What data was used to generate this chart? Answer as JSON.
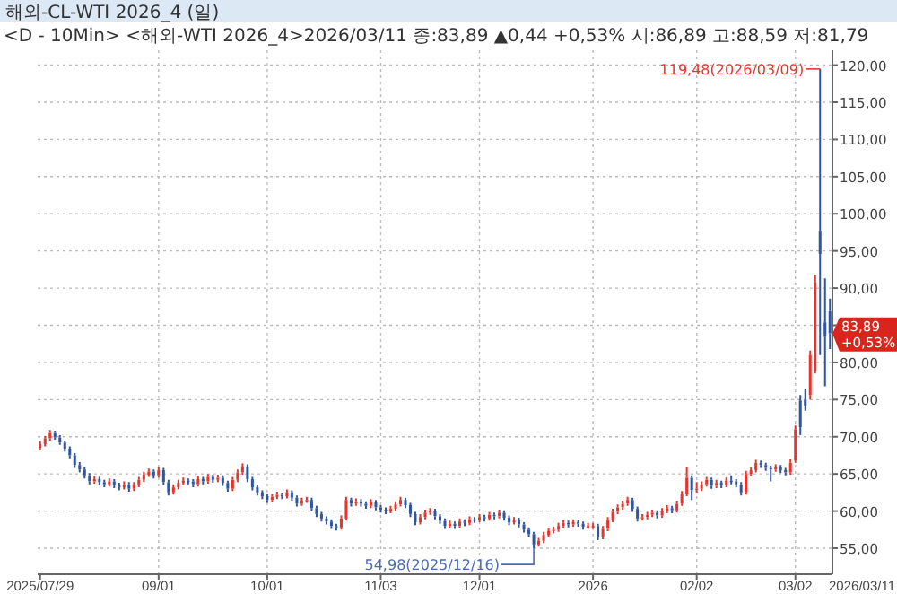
{
  "chart_data": {
    "type": "candlestick",
    "title": "해외-CL-WTI 2026_4 (일)",
    "subtitle": "<D - 10Min> <해외-WTI 2026_4>2026/03/11 종:83,89 ▲0,44 +0,53% 시:86,89 고:88,59 저:81,79",
    "categories": [
      "2025/07/29",
      null,
      null,
      null,
      null,
      null,
      null,
      null,
      null,
      null,
      null,
      null,
      null,
      null,
      null,
      null,
      null,
      null,
      null,
      null,
      null,
      null,
      null,
      null,
      "09/01",
      null,
      null,
      null,
      null,
      null,
      null,
      null,
      null,
      null,
      null,
      null,
      null,
      null,
      null,
      null,
      null,
      null,
      null,
      null,
      null,
      null,
      "10/01",
      null,
      null,
      null,
      null,
      null,
      null,
      null,
      null,
      null,
      null,
      null,
      null,
      null,
      null,
      null,
      null,
      null,
      null,
      null,
      null,
      null,
      null,
      "11/03",
      null,
      null,
      null,
      null,
      null,
      null,
      null,
      null,
      null,
      null,
      null,
      null,
      null,
      null,
      null,
      null,
      null,
      null,
      null,
      "12/01",
      null,
      null,
      null,
      null,
      null,
      null,
      null,
      null,
      null,
      null,
      null,
      null,
      null,
      null,
      null,
      null,
      null,
      null,
      null,
      null,
      null,
      null,
      "2026",
      null,
      null,
      null,
      null,
      null,
      null,
      null,
      null,
      null,
      null,
      null,
      null,
      null,
      null,
      null,
      null,
      null,
      null,
      null,
      null,
      "02/02",
      null,
      null,
      null,
      null,
      null,
      null,
      null,
      null,
      null,
      null,
      null,
      null,
      null,
      null,
      null,
      null,
      null,
      null,
      null,
      "03/02",
      null,
      null,
      null,
      null,
      null,
      null,
      null
    ],
    "ohlc": [
      [
        68.5,
        69.4,
        68.2,
        69.0
      ],
      [
        69.0,
        70.1,
        68.7,
        69.8
      ],
      [
        69.8,
        70.9,
        69.5,
        70.5
      ],
      [
        70.5,
        70.8,
        69.6,
        69.9
      ],
      [
        69.9,
        70.2,
        68.9,
        69.2
      ],
      [
        69.2,
        69.5,
        68.0,
        68.4
      ],
      [
        68.4,
        68.7,
        67.1,
        67.5
      ],
      [
        67.5,
        67.8,
        65.8,
        66.2
      ],
      [
        66.2,
        66.6,
        65.2,
        65.6
      ],
      [
        65.6,
        65.9,
        64.4,
        64.8
      ],
      [
        64.8,
        65.1,
        63.6,
        64.0
      ],
      [
        64.0,
        64.7,
        63.7,
        64.3
      ],
      [
        64.3,
        64.6,
        63.5,
        63.9
      ],
      [
        63.9,
        64.2,
        63.2,
        63.6
      ],
      [
        63.6,
        64.4,
        63.3,
        64.0
      ],
      [
        64.0,
        64.3,
        63.1,
        63.5
      ],
      [
        63.5,
        63.8,
        62.8,
        63.2
      ],
      [
        63.2,
        64.0,
        62.9,
        63.6
      ],
      [
        63.6,
        63.9,
        62.6,
        63.0
      ],
      [
        63.0,
        63.9,
        62.7,
        63.5
      ],
      [
        63.5,
        64.6,
        63.2,
        64.2
      ],
      [
        64.2,
        65.3,
        63.9,
        64.9
      ],
      [
        64.9,
        65.7,
        64.6,
        65.3
      ],
      [
        65.3,
        65.6,
        64.4,
        64.8
      ],
      [
        64.8,
        65.9,
        64.5,
        65.5
      ],
      [
        65.5,
        65.8,
        63.5,
        63.9
      ],
      [
        63.9,
        64.2,
        62.1,
        62.5
      ],
      [
        62.5,
        63.6,
        62.2,
        63.2
      ],
      [
        63.2,
        64.2,
        62.9,
        63.8
      ],
      [
        63.8,
        64.5,
        63.5,
        64.1
      ],
      [
        64.1,
        64.4,
        63.6,
        64.0
      ],
      [
        64.0,
        64.3,
        63.2,
        63.6
      ],
      [
        63.6,
        64.7,
        63.3,
        64.3
      ],
      [
        64.3,
        64.6,
        63.6,
        64.0
      ],
      [
        64.0,
        65.0,
        63.7,
        64.6
      ],
      [
        64.6,
        64.9,
        63.8,
        64.2
      ],
      [
        64.2,
        64.9,
        63.9,
        64.5
      ],
      [
        64.5,
        64.8,
        63.4,
        63.8
      ],
      [
        63.8,
        64.1,
        62.6,
        63.0
      ],
      [
        63.0,
        64.6,
        62.7,
        64.2
      ],
      [
        64.2,
        65.6,
        63.9,
        65.2
      ],
      [
        65.2,
        66.4,
        64.9,
        66.0
      ],
      [
        66.0,
        66.3,
        63.9,
        64.3
      ],
      [
        64.3,
        64.6,
        62.8,
        63.2
      ],
      [
        63.2,
        63.5,
        62.1,
        62.5
      ],
      [
        62.5,
        62.8,
        61.6,
        62.0
      ],
      [
        62.0,
        62.3,
        61.1,
        61.5
      ],
      [
        61.5,
        62.3,
        61.2,
        61.9
      ],
      [
        61.9,
        62.6,
        61.6,
        62.2
      ],
      [
        62.2,
        62.5,
        61.6,
        62.0
      ],
      [
        62.0,
        62.9,
        61.7,
        62.5
      ],
      [
        62.5,
        62.8,
        61.4,
        61.8
      ],
      [
        61.8,
        62.1,
        60.6,
        61.0
      ],
      [
        61.0,
        61.8,
        60.7,
        61.4
      ],
      [
        61.4,
        61.9,
        61.1,
        61.5
      ],
      [
        61.5,
        61.8,
        60.0,
        60.4
      ],
      [
        60.4,
        60.7,
        59.2,
        59.6
      ],
      [
        59.6,
        59.9,
        58.6,
        59.0
      ],
      [
        59.0,
        59.3,
        58.2,
        58.6
      ],
      [
        58.6,
        58.9,
        57.6,
        58.0
      ],
      [
        58.0,
        58.3,
        57.4,
        57.8
      ],
      [
        57.8,
        59.4,
        57.5,
        59.0
      ],
      [
        59.0,
        61.9,
        58.7,
        61.5
      ],
      [
        61.5,
        61.8,
        60.6,
        61.0
      ],
      [
        61.0,
        61.7,
        60.7,
        61.3
      ],
      [
        61.3,
        61.6,
        60.6,
        61.0
      ],
      [
        61.0,
        61.3,
        60.3,
        60.7
      ],
      [
        60.7,
        61.6,
        60.4,
        61.2
      ],
      [
        61.2,
        61.5,
        60.1,
        60.5
      ],
      [
        60.5,
        60.8,
        59.8,
        60.2
      ],
      [
        60.2,
        60.5,
        59.6,
        60.0
      ],
      [
        60.0,
        60.7,
        59.7,
        60.3
      ],
      [
        60.3,
        61.3,
        60.0,
        60.9
      ],
      [
        60.9,
        61.9,
        60.6,
        61.5
      ],
      [
        61.5,
        61.8,
        60.4,
        60.8
      ],
      [
        60.8,
        61.1,
        59.2,
        59.6
      ],
      [
        59.6,
        59.9,
        58.1,
        58.5
      ],
      [
        58.5,
        59.6,
        58.2,
        59.2
      ],
      [
        59.2,
        60.2,
        58.9,
        59.8
      ],
      [
        59.8,
        60.4,
        59.5,
        60.0
      ],
      [
        60.0,
        60.3,
        58.9,
        59.3
      ],
      [
        59.3,
        59.6,
        58.3,
        58.7
      ],
      [
        58.7,
        59.0,
        57.6,
        58.0
      ],
      [
        58.0,
        58.7,
        57.7,
        58.3
      ],
      [
        58.3,
        58.6,
        57.6,
        58.0
      ],
      [
        58.0,
        59.0,
        57.7,
        58.6
      ],
      [
        58.6,
        58.9,
        58.0,
        58.4
      ],
      [
        58.4,
        59.3,
        58.1,
        58.9
      ],
      [
        58.9,
        59.2,
        58.4,
        58.8
      ],
      [
        58.8,
        59.6,
        58.5,
        59.2
      ],
      [
        59.2,
        59.5,
        58.6,
        59.0
      ],
      [
        59.0,
        59.9,
        58.7,
        59.5
      ],
      [
        59.5,
        59.8,
        58.9,
        59.3
      ],
      [
        59.3,
        60.2,
        59.0,
        59.8
      ],
      [
        59.8,
        60.1,
        58.7,
        59.1
      ],
      [
        59.1,
        59.4,
        58.1,
        58.5
      ],
      [
        58.5,
        59.2,
        58.2,
        58.8
      ],
      [
        58.8,
        59.1,
        57.8,
        58.2
      ],
      [
        58.2,
        58.5,
        57.1,
        57.5
      ],
      [
        57.5,
        57.8,
        56.5,
        56.9
      ],
      [
        56.9,
        57.2,
        54.98,
        55.5
      ],
      [
        55.5,
        56.4,
        55.2,
        56.0
      ],
      [
        56.0,
        57.2,
        55.7,
        56.8
      ],
      [
        56.8,
        57.7,
        56.5,
        57.3
      ],
      [
        57.3,
        57.9,
        57.0,
        57.5
      ],
      [
        57.5,
        58.4,
        57.2,
        58.0
      ],
      [
        58.0,
        58.8,
        57.7,
        58.4
      ],
      [
        58.4,
        58.7,
        57.8,
        58.2
      ],
      [
        58.2,
        58.9,
        57.9,
        58.5
      ],
      [
        58.5,
        58.8,
        57.9,
        58.3
      ],
      [
        58.3,
        58.6,
        57.5,
        57.9
      ],
      [
        57.9,
        58.4,
        57.6,
        58.0
      ],
      [
        58.0,
        58.4,
        57.6,
        58.0
      ],
      [
        58.0,
        58.3,
        56.1,
        56.5
      ],
      [
        56.5,
        58.0,
        56.2,
        57.6
      ],
      [
        57.6,
        59.2,
        57.3,
        58.8
      ],
      [
        58.8,
        60.3,
        58.5,
        59.9
      ],
      [
        59.9,
        60.9,
        59.6,
        60.5
      ],
      [
        60.5,
        61.4,
        60.2,
        61.0
      ],
      [
        61.0,
        61.9,
        60.7,
        61.5
      ],
      [
        61.5,
        61.8,
        59.9,
        60.3
      ],
      [
        60.3,
        60.6,
        58.6,
        59.0
      ],
      [
        59.0,
        59.6,
        58.7,
        59.2
      ],
      [
        59.2,
        59.9,
        58.9,
        59.5
      ],
      [
        59.5,
        60.2,
        59.2,
        59.8
      ],
      [
        59.8,
        60.1,
        59.0,
        59.4
      ],
      [
        59.4,
        60.4,
        59.1,
        60.0
      ],
      [
        60.0,
        60.8,
        59.7,
        60.4
      ],
      [
        60.4,
        60.7,
        59.7,
        60.1
      ],
      [
        60.1,
        61.4,
        59.8,
        61.0
      ],
      [
        61.0,
        62.7,
        60.7,
        62.3
      ],
      [
        62.3,
        66.0,
        62.0,
        64.5
      ],
      [
        64.5,
        64.8,
        61.5,
        62.8
      ],
      [
        62.8,
        63.9,
        62.5,
        63.0
      ],
      [
        63.0,
        64.0,
        62.7,
        63.6
      ],
      [
        63.6,
        64.6,
        63.3,
        64.2
      ],
      [
        64.2,
        64.5,
        63.0,
        63.4
      ],
      [
        63.4,
        64.2,
        63.1,
        63.8
      ],
      [
        63.8,
        64.1,
        63.1,
        63.5
      ],
      [
        63.5,
        64.5,
        63.2,
        64.1
      ],
      [
        64.1,
        64.8,
        63.6,
        64.0
      ],
      [
        64.0,
        64.3,
        63.2,
        63.6
      ],
      [
        63.6,
        63.9,
        62.1,
        62.5
      ],
      [
        62.5,
        65.4,
        62.2,
        65.0
      ],
      [
        65.0,
        65.9,
        64.7,
        65.5
      ],
      [
        65.5,
        66.9,
        65.2,
        66.5
      ],
      [
        66.5,
        66.8,
        65.8,
        66.2
      ],
      [
        66.2,
        66.5,
        65.4,
        65.8
      ],
      [
        65.8,
        66.1,
        64.0,
        65.6
      ],
      [
        65.6,
        66.3,
        65.3,
        65.9
      ],
      [
        65.9,
        66.2,
        65.1,
        65.5
      ],
      [
        65.5,
        65.8,
        64.8,
        65.2
      ],
      [
        65.2,
        67.0,
        64.9,
        66.5
      ],
      [
        66.8,
        71.5,
        66.5,
        71.0
      ],
      [
        74.9,
        75.6,
        70.2,
        71.3
      ],
      [
        75.0,
        76.5,
        73.5,
        74.2
      ],
      [
        75.6,
        81.6,
        75.0,
        81.0
      ],
      [
        78.8,
        91.8,
        78.5,
        90.8
      ],
      [
        97.7,
        119.48,
        81.0,
        94.6
      ],
      [
        85.4,
        91.3,
        76.8,
        83.45
      ],
      [
        86.89,
        88.59,
        81.79,
        83.89
      ]
    ],
    "ylim": [
      51.5,
      122
    ],
    "yticks": [
      {
        "value": 55,
        "label": "55,00"
      },
      {
        "value": 60,
        "label": "60,00"
      },
      {
        "value": 65,
        "label": "65,00"
      },
      {
        "value": 70,
        "label": "70,00"
      },
      {
        "value": 75,
        "label": "75,00"
      },
      {
        "value": 80,
        "label": "80,00"
      },
      {
        "value": 85,
        "label": null
      },
      {
        "value": 90,
        "label": "90,00"
      },
      {
        "value": 95,
        "label": "95,00"
      },
      {
        "value": 100,
        "label": "100,00"
      },
      {
        "value": 105,
        "label": "105,00"
      },
      {
        "value": 110,
        "label": "110,00"
      },
      {
        "value": 115,
        "label": "115,00"
      },
      {
        "value": 120,
        "label": "120,00"
      }
    ],
    "grid": true,
    "annotations": [
      "119,48(2026/03/09)",
      "54,98(2025/12/16)",
      "83,89",
      "+0,53%",
      "2026/03/11"
    ]
  }
}
